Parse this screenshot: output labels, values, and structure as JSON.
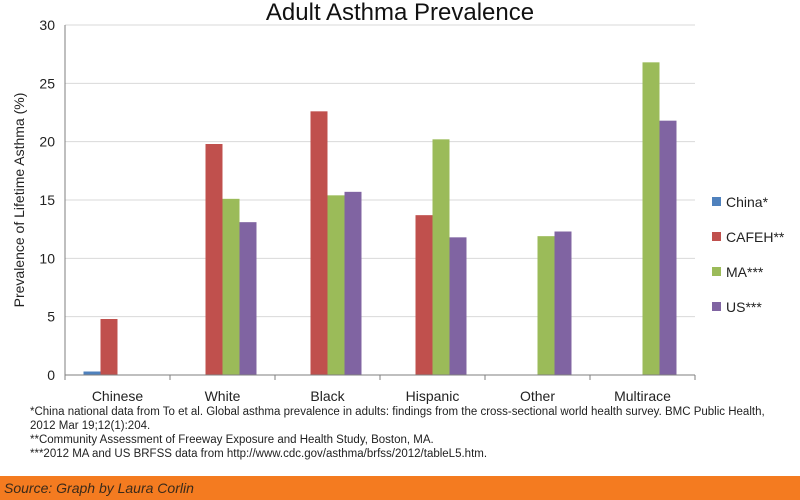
{
  "chart_data": {
    "type": "bar",
    "title": "Adult Asthma Prevalence",
    "ylabel": "Prevalence of Lifetime Asthma (%)",
    "xlabel": "",
    "ylim": [
      0,
      30
    ],
    "yticks": [
      "0",
      "5",
      "10",
      "15",
      "20",
      "25",
      "30"
    ],
    "categories": [
      "Chinese",
      "White",
      "Black",
      "Hispanic",
      "Other",
      "Multirace"
    ],
    "series": [
      {
        "name": "China*",
        "color": "#4f81bd",
        "values": [
          0.3,
          null,
          null,
          null,
          null,
          null
        ]
      },
      {
        "name": "CAFEH**",
        "color": "#c0504d",
        "values": [
          4.8,
          19.8,
          22.6,
          13.7,
          null,
          null
        ]
      },
      {
        "name": "MA***",
        "color": "#9bbb59",
        "values": [
          null,
          15.1,
          15.4,
          20.2,
          11.9,
          26.8
        ]
      },
      {
        "name": "US***",
        "color": "#8064a2",
        "values": [
          null,
          13.1,
          15.7,
          11.8,
          12.3,
          21.8
        ]
      }
    ],
    "legend_position": "right",
    "grid": true
  },
  "footnotes": [
    "*China national data from To et al. Global asthma prevalence in adults: findings from the cross-sectional world health survey.  BMC Public Health, 2012 Mar 19;12(1):204.",
    "**Community Assessment of Freeway Exposure and Health Study, Boston, MA.",
    "***2012 MA and US BRFSS data from http://www.cdc.gov/asthma/brfss/2012/tableL5.htm."
  ],
  "source": "Source: Graph by Laura Corlin",
  "colors": {
    "grid": "#d9d9d9",
    "axis": "#7f7f7f",
    "source_bar": "#f47b20"
  }
}
